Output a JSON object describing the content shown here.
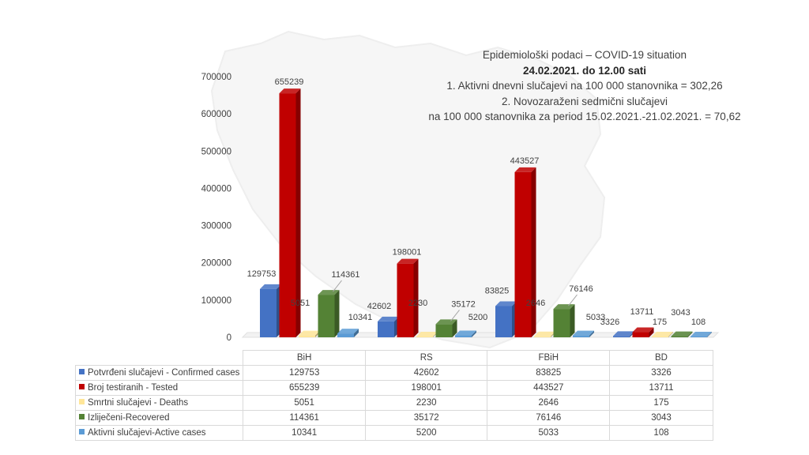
{
  "notes": {
    "line1": "Epidemiološki podaci – COVID-19 situation",
    "line2": "24.02.2021. do 12.00 sati",
    "line3": "1. Aktivni dnevni slučajevi na 100 000 stanovnika = 302,26",
    "line4": "2. Novozaraženi sedmični slučajevi",
    "line5": "na 100 000 stanovnika za period 15.02.2021.-21.02.2021. = 70,62"
  },
  "chart_data": {
    "type": "bar",
    "style": "3d-clustered-column",
    "categories": [
      "BiH",
      "RS",
      "FBiH",
      "BD"
    ],
    "ylim": [
      0,
      700000
    ],
    "yticks": [
      0,
      100000,
      200000,
      300000,
      400000,
      500000,
      600000,
      700000
    ],
    "ytick_labels": [
      "0",
      "100000",
      "200000",
      "300000",
      "400000",
      "500000",
      "600000",
      "700000"
    ],
    "grid": false,
    "legend": "data-table",
    "series": [
      {
        "name": "Potvrđeni slučajevi - Confirmed cases",
        "color": "#4472c4",
        "values": [
          129753,
          42602,
          83825,
          3326
        ]
      },
      {
        "name": "Broj testiranih - Tested",
        "color": "#c00000",
        "values": [
          655239,
          198001,
          443527,
          13711
        ]
      },
      {
        "name": "Smrtni slučajevi - Deaths",
        "color": "#ffe699",
        "values": [
          5051,
          2230,
          2646,
          175
        ]
      },
      {
        "name": "Izliječeni-Recovered",
        "color": "#548235",
        "values": [
          114361,
          35172,
          76146,
          3043
        ]
      },
      {
        "name": "Aktivni slučajevi-Active cases",
        "color": "#5b9bd5",
        "values": [
          10341,
          5200,
          5033,
          108
        ]
      }
    ]
  }
}
